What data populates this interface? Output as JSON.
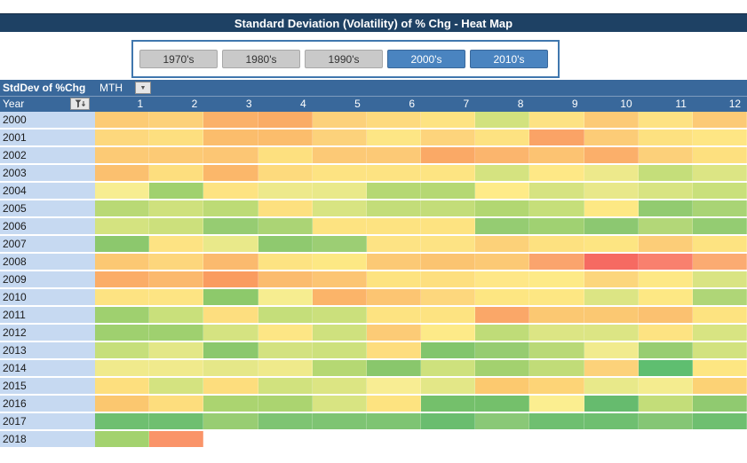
{
  "title": "Standard Deviation (Volatility) of % Chg - Heat Map",
  "slicer": {
    "buttons": [
      {
        "label": "1970's",
        "selected": false
      },
      {
        "label": "1980's",
        "selected": false
      },
      {
        "label": "1990's",
        "selected": false
      },
      {
        "label": "2000's",
        "selected": true
      },
      {
        "label": "2010's",
        "selected": true
      }
    ]
  },
  "pivot": {
    "value_label": "StdDev of %Chg",
    "column_field": "MTH",
    "row_field": "Year",
    "columns": [
      "1",
      "2",
      "3",
      "4",
      "5",
      "6",
      "7",
      "8",
      "9",
      "10",
      "11",
      "12"
    ],
    "dropdown_icon": "▼"
  },
  "colors": {
    "title_bar_bg": "#1E4164",
    "header_bg": "#39689B",
    "year_column_bg": "#C6D9F1",
    "slicer_border": "#4077AE",
    "slicer_selected_bg": "#4A84C0",
    "slicer_unselected_bg": "#C9C9C9"
  },
  "chart_data": {
    "type": "heatmap",
    "title": "Standard Deviation (Volatility) of % Chg - Heat Map",
    "xlabel": "MTH",
    "ylabel": "Year",
    "x": [
      "1",
      "2",
      "3",
      "4",
      "5",
      "6",
      "7",
      "8",
      "9",
      "10",
      "11",
      "12"
    ],
    "y": [
      "2000",
      "2001",
      "2002",
      "2003",
      "2004",
      "2005",
      "2006",
      "2007",
      "2008",
      "2009",
      "2010",
      "2011",
      "2012",
      "2013",
      "2014",
      "2015",
      "2016",
      "2017",
      "2018"
    ],
    "color_scale_note": "green = low volatility, yellow = mid, orange/red = high; no numeric labels shown",
    "cell_colors": [
      [
        "#FCCB75",
        "#FCD179",
        "#FBB169",
        "#FAAC65",
        "#FCD17B",
        "#FDDA7E",
        "#FDE382",
        "#D2E27E",
        "#FDE283",
        "#FCCA76",
        "#FDE283",
        "#FCCA76"
      ],
      [
        "#FDD87D",
        "#FDDF7F",
        "#FBBD6C",
        "#FBBD6C",
        "#FCD27B",
        "#FDE685",
        "#FDD47C",
        "#FDE281",
        "#FAA366",
        "#FCCC77",
        "#FDE180",
        "#FEE684"
      ],
      [
        "#FCCA75",
        "#FCCA75",
        "#FCC674",
        "#FDE07F",
        "#FCC976",
        "#FCC976",
        "#FAA966",
        "#FBB56D",
        "#FCC372",
        "#FBAF6A",
        "#FCD07A",
        "#FDE07F"
      ],
      [
        "#FBC06F",
        "#FDDE7E",
        "#FBB76A",
        "#FDDA7D",
        "#FDE382",
        "#FDE382",
        "#FDE482",
        "#D5E380",
        "#FEE886",
        "#EDE98B",
        "#C5DE7A",
        "#DCE584"
      ],
      [
        "#F7ED91",
        "#A0D16E",
        "#FDE382",
        "#EDE98B",
        "#E9E98A",
        "#B5D873",
        "#B5D873",
        "#FEEB88",
        "#D6E381",
        "#E8E88A",
        "#D8E482",
        "#C9E07B"
      ],
      [
        "#B9D975",
        "#CFE17D",
        "#BDDB76",
        "#FDE07F",
        "#D8E482",
        "#C3DD79",
        "#C3DD79",
        "#B2D772",
        "#C6DF7A",
        "#FDE884",
        "#92CB70",
        "#A9D475"
      ],
      [
        "#D4E380",
        "#CCE07C",
        "#96CC72",
        "#ABD475",
        "#FDE381",
        "#FDE381",
        "#FDE381",
        "#95CC72",
        "#A0D172",
        "#8CC871",
        "#B3D778",
        "#94CC72"
      ],
      [
        "#8CC86D",
        "#FDE383",
        "#E9E98A",
        "#8FC96F",
        "#9CCE74",
        "#FDE384",
        "#FDE384",
        "#FCD179",
        "#FDE180",
        "#FDE582",
        "#FCCD78",
        "#FDE381"
      ],
      [
        "#FCC873",
        "#FDD67C",
        "#FBBA6E",
        "#FDE382",
        "#FDE884",
        "#FCC975",
        "#FBC471",
        "#FCC975",
        "#FAA46D",
        "#F66A62",
        "#F9806E",
        "#FBAB72"
      ],
      [
        "#FBAD67",
        "#FBB96D",
        "#FA9C60",
        "#FBBC6E",
        "#FCC573",
        "#FDE380",
        "#FDDF7F",
        "#FEE787",
        "#FDEA87",
        "#FCD67C",
        "#FDE885",
        "#D9E483"
      ],
      [
        "#FDE382",
        "#FDE483",
        "#8DC96B",
        "#F6ED90",
        "#FBB469",
        "#FCC572",
        "#FDD77D",
        "#FDE682",
        "#FDE783",
        "#DCE584",
        "#FDE884",
        "#AFD677"
      ],
      [
        "#9FD06F",
        "#C9E07B",
        "#FDDE7F",
        "#C5DE7A",
        "#CBE07C",
        "#FDE381",
        "#FDE381",
        "#FAA768",
        "#FBC872",
        "#FBC872",
        "#FBC170",
        "#FDE380"
      ],
      [
        "#9FD06F",
        "#9FD06F",
        "#D5E381",
        "#FDE685",
        "#CFE17E",
        "#FCCB76",
        "#FDEA88",
        "#BFDC78",
        "#DCE584",
        "#DCE584",
        "#FDE382",
        "#D8E482"
      ],
      [
        "#C6DF7B",
        "#E3E787",
        "#8BC86D",
        "#D3E280",
        "#CDE17D",
        "#FDDD7E",
        "#82C56C",
        "#96CC71",
        "#B9D977",
        "#F1EB8E",
        "#98CD72",
        "#D2E27F"
      ],
      [
        "#F0EA8C",
        "#F0EA8C",
        "#E5E788",
        "#EFEA8B",
        "#B5D873",
        "#89C76C",
        "#CEE17D",
        "#A3D16F",
        "#C1DC78",
        "#FCD27A",
        "#5FBE70",
        "#FDE682"
      ],
      [
        "#FDDF7E",
        "#D4E380",
        "#FDDD7D",
        "#D1E27E",
        "#DCE583",
        "#F8ED93",
        "#E3E787",
        "#FCC96F",
        "#FDD477",
        "#E8E98A",
        "#F4EC8F",
        "#FCD275"
      ],
      [
        "#FBC76F",
        "#FDDD7D",
        "#ABD470",
        "#ABD470",
        "#D8E482",
        "#FDE380",
        "#74C06B",
        "#74C06B",
        "#FBEE90",
        "#66BB6E",
        "#C3DD79",
        "#90CA70"
      ],
      [
        "#6FBF70",
        "#6FBF70",
        "#98CD73",
        "#7EC473",
        "#7EC473",
        "#7EC473",
        "#6ABD6F",
        "#8AC877",
        "#6FBF70",
        "#6FBF70",
        "#85C675",
        "#6FBF70"
      ],
      [
        "#A3D26E",
        "#FA9469",
        "",
        "",
        "",
        "",
        "",
        "",
        "",
        "",
        "",
        ""
      ]
    ]
  }
}
